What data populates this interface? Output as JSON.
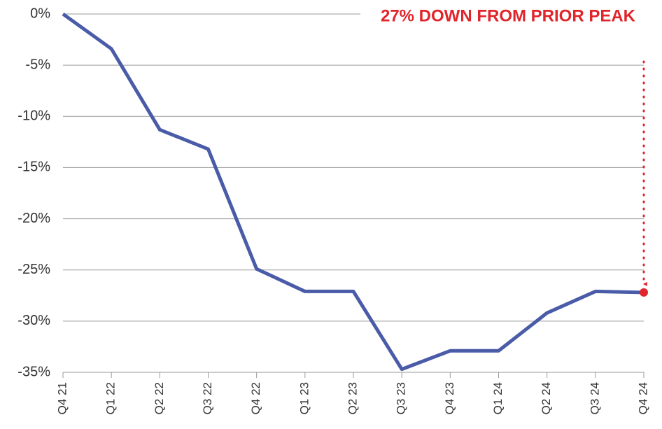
{
  "chart_data": {
    "type": "line",
    "annotation": "27% DOWN FROM PRIOR PEAK",
    "categories": [
      "Q4 21",
      "Q1 22",
      "Q2 22",
      "Q3 22",
      "Q4 22",
      "Q1 23",
      "Q2 23",
      "Q3 23",
      "Q4 23",
      "Q1 24",
      "Q2 24",
      "Q3 24",
      "Q4 24"
    ],
    "values": [
      0,
      -3.4,
      -11.3,
      -13.2,
      -24.9,
      -27.1,
      -27.1,
      -34.7,
      -32.9,
      -32.9,
      -29.2,
      -27.1,
      -27.2
    ],
    "color": "#4a5ba8",
    "highlight_color": "#e0252b",
    "ylim": [
      -35,
      0
    ],
    "yticks": [
      {
        "value": 0,
        "label": "0%"
      },
      {
        "value": -5,
        "label": "-5%"
      },
      {
        "value": -10,
        "label": "-10%"
      },
      {
        "value": -15,
        "label": "-15%"
      },
      {
        "value": -20,
        "label": "-20%"
      },
      {
        "value": -25,
        "label": "-25%"
      },
      {
        "value": -30,
        "label": "-30%"
      },
      {
        "value": -35,
        "label": "-35%"
      }
    ],
    "grid": true
  }
}
